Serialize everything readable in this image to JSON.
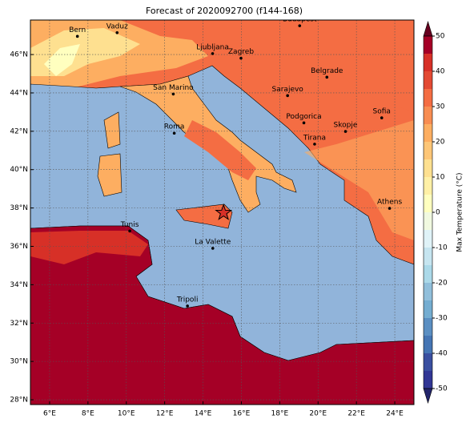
{
  "title": "Forecast of 2020092700 (f144-168)",
  "map": {
    "xlim": [
      5,
      25
    ],
    "ylim": [
      27.75,
      47.8
    ],
    "xticks": [
      {
        "value": 6,
        "label": "6°E"
      },
      {
        "value": 8,
        "label": "8°E"
      },
      {
        "value": 10,
        "label": "10°E"
      },
      {
        "value": 12,
        "label": "12°E"
      },
      {
        "value": 14,
        "label": "14°E"
      },
      {
        "value": 16,
        "label": "16°E"
      },
      {
        "value": 18,
        "label": "18°E"
      },
      {
        "value": 20,
        "label": "20°E"
      },
      {
        "value": 22,
        "label": "22°E"
      },
      {
        "value": 24,
        "label": "24°E"
      }
    ],
    "yticks": [
      {
        "value": 28,
        "label": "28°N"
      },
      {
        "value": 30,
        "label": "30°N"
      },
      {
        "value": 32,
        "label": "32°N"
      },
      {
        "value": 34,
        "label": "34°N"
      },
      {
        "value": 36,
        "label": "36°N"
      },
      {
        "value": 38,
        "label": "38°N"
      },
      {
        "value": 40,
        "label": "40°N"
      },
      {
        "value": 42,
        "label": "42°N"
      },
      {
        "value": 44,
        "label": "44°N"
      },
      {
        "value": 46,
        "label": "46°N"
      }
    ],
    "cities": [
      {
        "name": "Bern",
        "lon": 7.45,
        "lat": 46.95
      },
      {
        "name": "Vaduz",
        "lon": 9.52,
        "lat": 47.14
      },
      {
        "name": "Budapest",
        "lon": 19.04,
        "lat": 47.5
      },
      {
        "name": "Ljubljana",
        "lon": 14.5,
        "lat": 46.05
      },
      {
        "name": "Zagreb",
        "lon": 15.98,
        "lat": 45.81
      },
      {
        "name": "Belgrade",
        "lon": 20.46,
        "lat": 44.82
      },
      {
        "name": "San Marino",
        "lon": 12.45,
        "lat": 43.94
      },
      {
        "name": "Sarajevo",
        "lon": 18.41,
        "lat": 43.86
      },
      {
        "name": "Sofia",
        "lon": 23.32,
        "lat": 42.7
      },
      {
        "name": "Roma",
        "lon": 12.5,
        "lat": 41.9
      },
      {
        "name": "Podgorica",
        "lon": 19.26,
        "lat": 42.44
      },
      {
        "name": "Skopje",
        "lon": 21.43,
        "lat": 41.99
      },
      {
        "name": "Tirana",
        "lon": 19.82,
        "lat": 41.33
      },
      {
        "name": "Athens",
        "lon": 23.73,
        "lat": 37.98
      },
      {
        "name": "Tunis",
        "lon": 10.18,
        "lat": 36.8
      },
      {
        "name": "La Valette",
        "lon": 14.51,
        "lat": 35.9
      },
      {
        "name": "Tripoli",
        "lon": 13.19,
        "lat": 32.89
      }
    ],
    "star": {
      "lon": 15.07,
      "lat": 37.75
    }
  },
  "colorbar": {
    "label": "Max Temperature (°C)",
    "clim": [
      -50,
      50
    ],
    "ticks": [
      -50,
      -40,
      -30,
      -20,
      -10,
      0,
      10,
      20,
      30,
      40,
      50
    ],
    "colors": [
      "#313695",
      "#3a4fa0",
      "#4575b4",
      "#5b8fc2",
      "#74add1",
      "#91bfdb",
      "#abd9e9",
      "#c6e5f0",
      "#e0f3f8",
      "#f1f9e0",
      "#ffffbf",
      "#fff0a6",
      "#fee090",
      "#fdc677",
      "#fdae61",
      "#f88d52",
      "#f46d43",
      "#e34a33",
      "#d73027",
      "#a50026"
    ],
    "under": "#23256b",
    "over": "#67001f"
  }
}
